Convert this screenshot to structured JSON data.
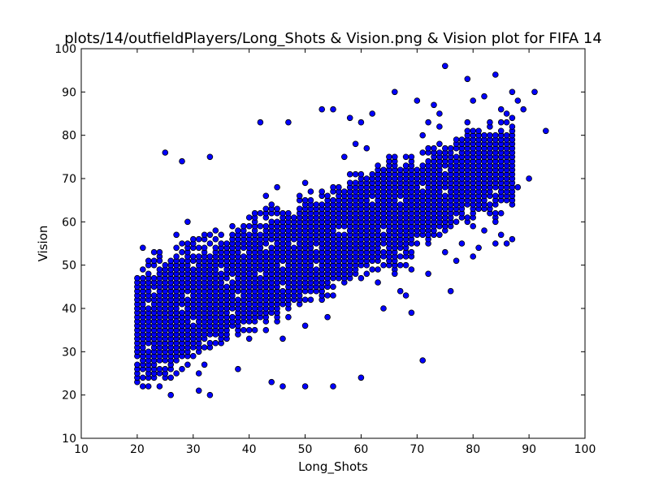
{
  "chart_data": {
    "type": "scatter",
    "title": "plots/14/outfieldPlayers/Long_Shots & Vision.png & Vision plot for FIFA 14",
    "xlabel": "Long_Shots",
    "ylabel": "Vision",
    "xlim": [
      10,
      100
    ],
    "ylim": [
      10,
      100
    ],
    "xticks": [
      10,
      20,
      30,
      40,
      50,
      60,
      70,
      80,
      90,
      100
    ],
    "yticks": [
      10,
      20,
      30,
      40,
      50,
      60,
      70,
      80,
      90,
      100
    ],
    "grid": false,
    "legend": "none",
    "marker_color": "#0000ff",
    "marker_edge_color": "#000000",
    "outliers": [
      [
        75,
        96
      ],
      [
        84,
        94
      ],
      [
        79,
        93
      ],
      [
        91,
        90
      ],
      [
        66,
        90
      ],
      [
        82,
        89
      ],
      [
        88,
        88
      ],
      [
        42,
        83
      ],
      [
        47,
        83
      ],
      [
        93,
        81
      ],
      [
        25,
        76
      ],
      [
        33,
        75
      ],
      [
        28,
        74
      ],
      [
        86,
        55
      ],
      [
        87,
        56
      ],
      [
        71,
        28
      ],
      [
        46,
        22
      ],
      [
        50,
        22
      ],
      [
        55,
        22
      ],
      [
        26,
        20
      ],
      [
        33,
        20
      ],
      [
        31,
        21
      ],
      [
        22,
        22
      ],
      [
        24,
        22
      ],
      [
        60,
        24
      ],
      [
        44,
        23
      ],
      [
        90,
        70
      ],
      [
        88,
        68
      ],
      [
        83,
        66
      ],
      [
        84,
        60
      ],
      [
        82,
        58
      ],
      [
        80,
        52
      ],
      [
        78,
        55
      ],
      [
        69,
        39
      ],
      [
        68,
        43
      ],
      [
        64,
        40
      ],
      [
        72,
        48
      ],
      [
        76,
        44
      ],
      [
        77,
        51
      ],
      [
        55,
        86
      ],
      [
        53,
        86
      ],
      [
        58,
        84
      ],
      [
        60,
        83
      ],
      [
        62,
        85
      ],
      [
        70,
        88
      ],
      [
        73,
        87
      ],
      [
        85,
        86
      ],
      [
        89,
        86
      ]
    ]
  }
}
